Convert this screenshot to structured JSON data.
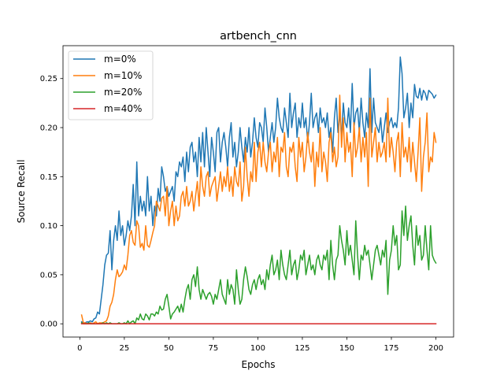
{
  "chart_data": {
    "type": "line",
    "title": "artbench_cnn",
    "xlabel": "Epochs",
    "ylabel": "Source Recall",
    "xlim": [
      -9.45,
      209.95
    ],
    "ylim": [
      -0.0135,
      0.2835
    ],
    "x_ticks": [
      0,
      25,
      50,
      75,
      100,
      125,
      150,
      175,
      200
    ],
    "y_ticks": [
      0.0,
      0.05,
      0.1,
      0.15,
      0.2,
      0.25
    ],
    "x_tick_labels": [
      "0",
      "25",
      "50",
      "75",
      "100",
      "125",
      "150",
      "175",
      "200"
    ],
    "y_tick_labels": [
      "0.00",
      "0.05",
      "0.10",
      "0.15",
      "0.20",
      "0.25"
    ],
    "grid": false,
    "legend_position": "top-left",
    "x_start": 1,
    "series": [
      {
        "name": "m=0%",
        "color": "#1f77b4",
        "values": [
          0.002,
          0.001,
          0.001,
          0.002,
          0.002,
          0.003,
          0.002,
          0.005,
          0.006,
          0.012,
          0.01,
          0.025,
          0.04,
          0.06,
          0.07,
          0.072,
          0.095,
          0.055,
          0.085,
          0.1,
          0.085,
          0.115,
          0.09,
          0.1,
          0.08,
          0.09,
          0.105,
          0.095,
          0.11,
          0.142,
          0.1,
          0.165,
          0.11,
          0.13,
          0.115,
          0.125,
          0.11,
          0.15,
          0.115,
          0.13,
          0.1,
          0.12,
          0.11,
          0.138,
          0.125,
          0.16,
          0.15,
          0.135,
          0.14,
          0.13,
          0.135,
          0.14,
          0.125,
          0.155,
          0.15,
          0.165,
          0.16,
          0.17,
          0.145,
          0.175,
          0.155,
          0.18,
          0.185,
          0.165,
          0.175,
          0.15,
          0.19,
          0.165,
          0.195,
          0.16,
          0.2,
          0.175,
          0.15,
          0.19,
          0.175,
          0.155,
          0.195,
          0.2,
          0.165,
          0.185,
          0.195,
          0.18,
          0.16,
          0.19,
          0.205,
          0.17,
          0.185,
          0.16,
          0.175,
          0.2,
          0.18,
          0.165,
          0.19,
          0.175,
          0.2,
          0.17,
          0.185,
          0.21,
          0.19,
          0.18,
          0.205,
          0.2,
          0.185,
          0.22,
          0.2,
          0.175,
          0.19,
          0.205,
          0.185,
          0.2,
          0.23,
          0.21,
          0.2,
          0.195,
          0.22,
          0.205,
          0.19,
          0.235,
          0.2,
          0.215,
          0.225,
          0.19,
          0.21,
          0.2,
          0.225,
          0.2,
          0.21,
          0.185,
          0.205,
          0.235,
          0.2,
          0.21,
          0.215,
          0.195,
          0.22,
          0.205,
          0.21,
          0.2,
          0.215,
          0.19,
          0.2,
          0.175,
          0.21,
          0.23,
          0.195,
          0.215,
          0.19,
          0.225,
          0.205,
          0.2,
          0.22,
          0.195,
          0.245,
          0.2,
          0.215,
          0.22,
          0.195,
          0.23,
          0.205,
          0.19,
          0.215,
          0.2,
          0.26,
          0.195,
          0.23,
          0.205,
          0.2,
          0.195,
          0.21,
          0.185,
          0.2,
          0.215,
          0.195,
          0.205,
          0.21,
          0.2,
          0.205,
          0.2,
          0.22,
          0.272,
          0.255,
          0.21,
          0.22,
          0.235,
          0.2,
          0.225,
          0.21,
          0.244,
          0.232,
          0.23,
          0.24,
          0.228,
          0.238,
          0.235,
          0.228,
          0.238,
          0.236,
          0.234,
          0.23,
          0.233
        ]
      },
      {
        "name": "m=10%",
        "color": "#ff7f0e",
        "values": [
          0.009,
          0.001,
          0.001,
          0.0,
          0.0,
          0.001,
          0.0,
          0.001,
          0.002,
          0.0,
          0.001,
          0.001,
          0.001,
          0.002,
          0.003,
          0.008,
          0.018,
          0.022,
          0.03,
          0.045,
          0.055,
          0.048,
          0.05,
          0.053,
          0.06,
          0.055,
          0.07,
          0.09,
          0.095,
          0.083,
          0.08,
          0.105,
          0.1,
          0.078,
          0.082,
          0.075,
          0.1,
          0.08,
          0.078,
          0.085,
          0.093,
          0.1,
          0.125,
          0.12,
          0.115,
          0.128,
          0.13,
          0.11,
          0.14,
          0.1,
          0.115,
          0.125,
          0.1,
          0.12,
          0.105,
          0.11,
          0.13,
          0.135,
          0.12,
          0.14,
          0.12,
          0.125,
          0.135,
          0.115,
          0.13,
          0.145,
          0.12,
          0.16,
          0.14,
          0.13,
          0.15,
          0.155,
          0.13,
          0.14,
          0.145,
          0.15,
          0.125,
          0.14,
          0.155,
          0.135,
          0.15,
          0.14,
          0.16,
          0.135,
          0.15,
          0.13,
          0.16,
          0.145,
          0.14,
          0.165,
          0.125,
          0.14,
          0.18,
          0.15,
          0.13,
          0.155,
          0.145,
          0.185,
          0.145,
          0.175,
          0.185,
          0.16,
          0.185,
          0.165,
          0.155,
          0.175,
          0.185,
          0.155,
          0.175,
          0.165,
          0.19,
          0.15,
          0.18,
          0.175,
          0.195,
          0.16,
          0.15,
          0.18,
          0.175,
          0.185,
          0.16,
          0.145,
          0.19,
          0.17,
          0.185,
          0.155,
          0.17,
          0.195,
          0.175,
          0.165,
          0.185,
          0.14,
          0.175,
          0.16,
          0.2,
          0.155,
          0.175,
          0.165,
          0.145,
          0.185,
          0.195,
          0.165,
          0.18,
          0.16,
          0.17,
          0.233,
          0.18,
          0.21,
          0.165,
          0.195,
          0.175,
          0.185,
          0.15,
          0.205,
          0.17,
          0.18,
          0.2,
          0.165,
          0.19,
          0.17,
          0.195,
          0.14,
          0.23,
          0.17,
          0.185,
          0.2,
          0.165,
          0.185,
          0.17,
          0.175,
          0.185,
          0.165,
          0.23,
          0.17,
          0.19,
          0.175,
          0.155,
          0.185,
          0.195,
          0.15,
          0.205,
          0.17,
          0.18,
          0.165,
          0.19,
          0.155,
          0.185,
          0.165,
          0.145,
          0.175,
          0.21,
          0.135,
          0.17,
          0.185,
          0.215,
          0.155,
          0.17,
          0.165,
          0.195,
          0.185
        ]
      },
      {
        "name": "m=20%",
        "color": "#2ca02c",
        "values": [
          0.001,
          0.0,
          0.0,
          0.0,
          0.001,
          0.0,
          0.0,
          0.0,
          0.0,
          0.0,
          0.0,
          0.0,
          0.001,
          0.0,
          0.001,
          0.0,
          0.001,
          0.0,
          0.0,
          0.0,
          0.0,
          0.001,
          0.0,
          0.0,
          0.001,
          0.0,
          0.003,
          0.0,
          0.002,
          0.003,
          0.0,
          0.006,
          0.004,
          0.01,
          0.005,
          0.004,
          0.01,
          0.008,
          0.004,
          0.01,
          0.01,
          0.008,
          0.012,
          0.01,
          0.018,
          0.014,
          0.015,
          0.025,
          0.03,
          0.018,
          0.005,
          0.01,
          0.012,
          0.015,
          0.018,
          0.012,
          0.02,
          0.012,
          0.025,
          0.035,
          0.04,
          0.025,
          0.045,
          0.05,
          0.038,
          0.058,
          0.035,
          0.025,
          0.035,
          0.03,
          0.025,
          0.03,
          0.032,
          0.028,
          0.02,
          0.03,
          0.025,
          0.035,
          0.045,
          0.03,
          0.025,
          0.02,
          0.045,
          0.03,
          0.04,
          0.035,
          0.02,
          0.055,
          0.035,
          0.02,
          0.025,
          0.045,
          0.058,
          0.048,
          0.035,
          0.03,
          0.04,
          0.045,
          0.035,
          0.045,
          0.05,
          0.04,
          0.045,
          0.035,
          0.055,
          0.045,
          0.06,
          0.07,
          0.05,
          0.055,
          0.065,
          0.045,
          0.075,
          0.06,
          0.05,
          0.045,
          0.06,
          0.075,
          0.05,
          0.06,
          0.065,
          0.045,
          0.055,
          0.07,
          0.065,
          0.075,
          0.05,
          0.06,
          0.07,
          0.055,
          0.06,
          0.05,
          0.065,
          0.07,
          0.06,
          0.055,
          0.07,
          0.065,
          0.075,
          0.045,
          0.085,
          0.06,
          0.045,
          0.065,
          0.07,
          0.1,
          0.085,
          0.075,
          0.06,
          0.095,
          0.07,
          0.08,
          0.065,
          0.05,
          0.105,
          0.07,
          0.045,
          0.07,
          0.065,
          0.08,
          0.07,
          0.075,
          0.06,
          0.045,
          0.06,
          0.075,
          0.08,
          0.07,
          0.06,
          0.075,
          0.068,
          0.085,
          0.03,
          0.065,
          0.075,
          0.1,
          0.08,
          0.09,
          0.055,
          0.06,
          0.115,
          0.09,
          0.12,
          0.085,
          0.1,
          0.11,
          0.08,
          0.06,
          0.1,
          0.08,
          0.09,
          0.065,
          0.07,
          0.1,
          0.075,
          0.055,
          0.1,
          0.07,
          0.065,
          0.062
        ]
      },
      {
        "name": "m=40%",
        "color": "#d62728",
        "values": [
          0.0,
          0.0,
          0.0,
          0.0,
          0.0,
          0.0,
          0.0,
          0.0,
          0.0,
          0.0,
          0.0,
          0.0,
          0.0,
          0.0,
          0.0,
          0.0,
          0.0,
          0.0,
          0.0,
          0.0,
          0.0,
          0.0,
          0.0,
          0.0,
          0.0,
          0.0,
          0.0,
          0.0,
          0.0,
          0.0,
          0.0,
          0.0,
          0.0,
          0.0,
          0.0,
          0.0,
          0.0,
          0.0,
          0.0,
          0.0,
          0.0,
          0.0,
          0.0,
          0.0,
          0.0,
          0.0,
          0.0,
          0.0,
          0.0,
          0.0,
          0.0,
          0.0,
          0.0,
          0.0,
          0.0,
          0.0,
          0.0,
          0.0,
          0.0,
          0.0,
          0.0,
          0.0,
          0.0,
          0.0,
          0.0,
          0.0,
          0.0,
          0.0,
          0.0,
          0.0,
          0.0,
          0.0,
          0.0,
          0.0,
          0.0,
          0.0,
          0.0,
          0.0,
          0.0,
          0.0,
          0.0,
          0.0,
          0.0,
          0.0,
          0.0,
          0.0,
          0.0,
          0.0,
          0.0,
          0.0,
          0.0,
          0.0,
          0.0,
          0.0,
          0.0,
          0.0,
          0.0,
          0.0,
          0.0,
          0.0,
          0.0,
          0.0,
          0.0,
          0.0,
          0.0,
          0.0,
          0.0,
          0.0,
          0.0,
          0.0,
          0.0,
          0.0,
          0.0,
          0.0,
          0.0,
          0.0,
          0.0,
          0.0,
          0.0,
          0.0,
          0.0,
          0.0,
          0.0,
          0.0,
          0.0,
          0.0,
          0.0,
          0.0,
          0.0,
          0.0,
          0.0,
          0.0,
          0.0,
          0.0,
          0.0,
          0.0,
          0.0,
          0.0,
          0.0,
          0.0,
          0.0,
          0.0,
          0.0,
          0.0,
          0.0,
          0.0,
          0.0,
          0.0,
          0.0,
          0.0,
          0.0,
          0.0,
          0.0,
          0.0,
          0.0,
          0.0,
          0.0,
          0.0,
          0.0,
          0.0,
          0.0,
          0.0,
          0.0,
          0.0,
          0.0,
          0.0,
          0.0,
          0.0,
          0.0,
          0.0,
          0.0,
          0.0,
          0.0,
          0.0,
          0.0,
          0.0,
          0.0,
          0.0,
          0.0,
          0.0,
          0.0,
          0.0,
          0.0,
          0.0,
          0.0,
          0.0,
          0.0,
          0.0,
          0.0,
          0.0,
          0.0,
          0.0,
          0.0,
          0.0,
          0.0,
          0.0,
          0.0,
          0.0,
          0.0,
          0.0
        ]
      }
    ]
  }
}
